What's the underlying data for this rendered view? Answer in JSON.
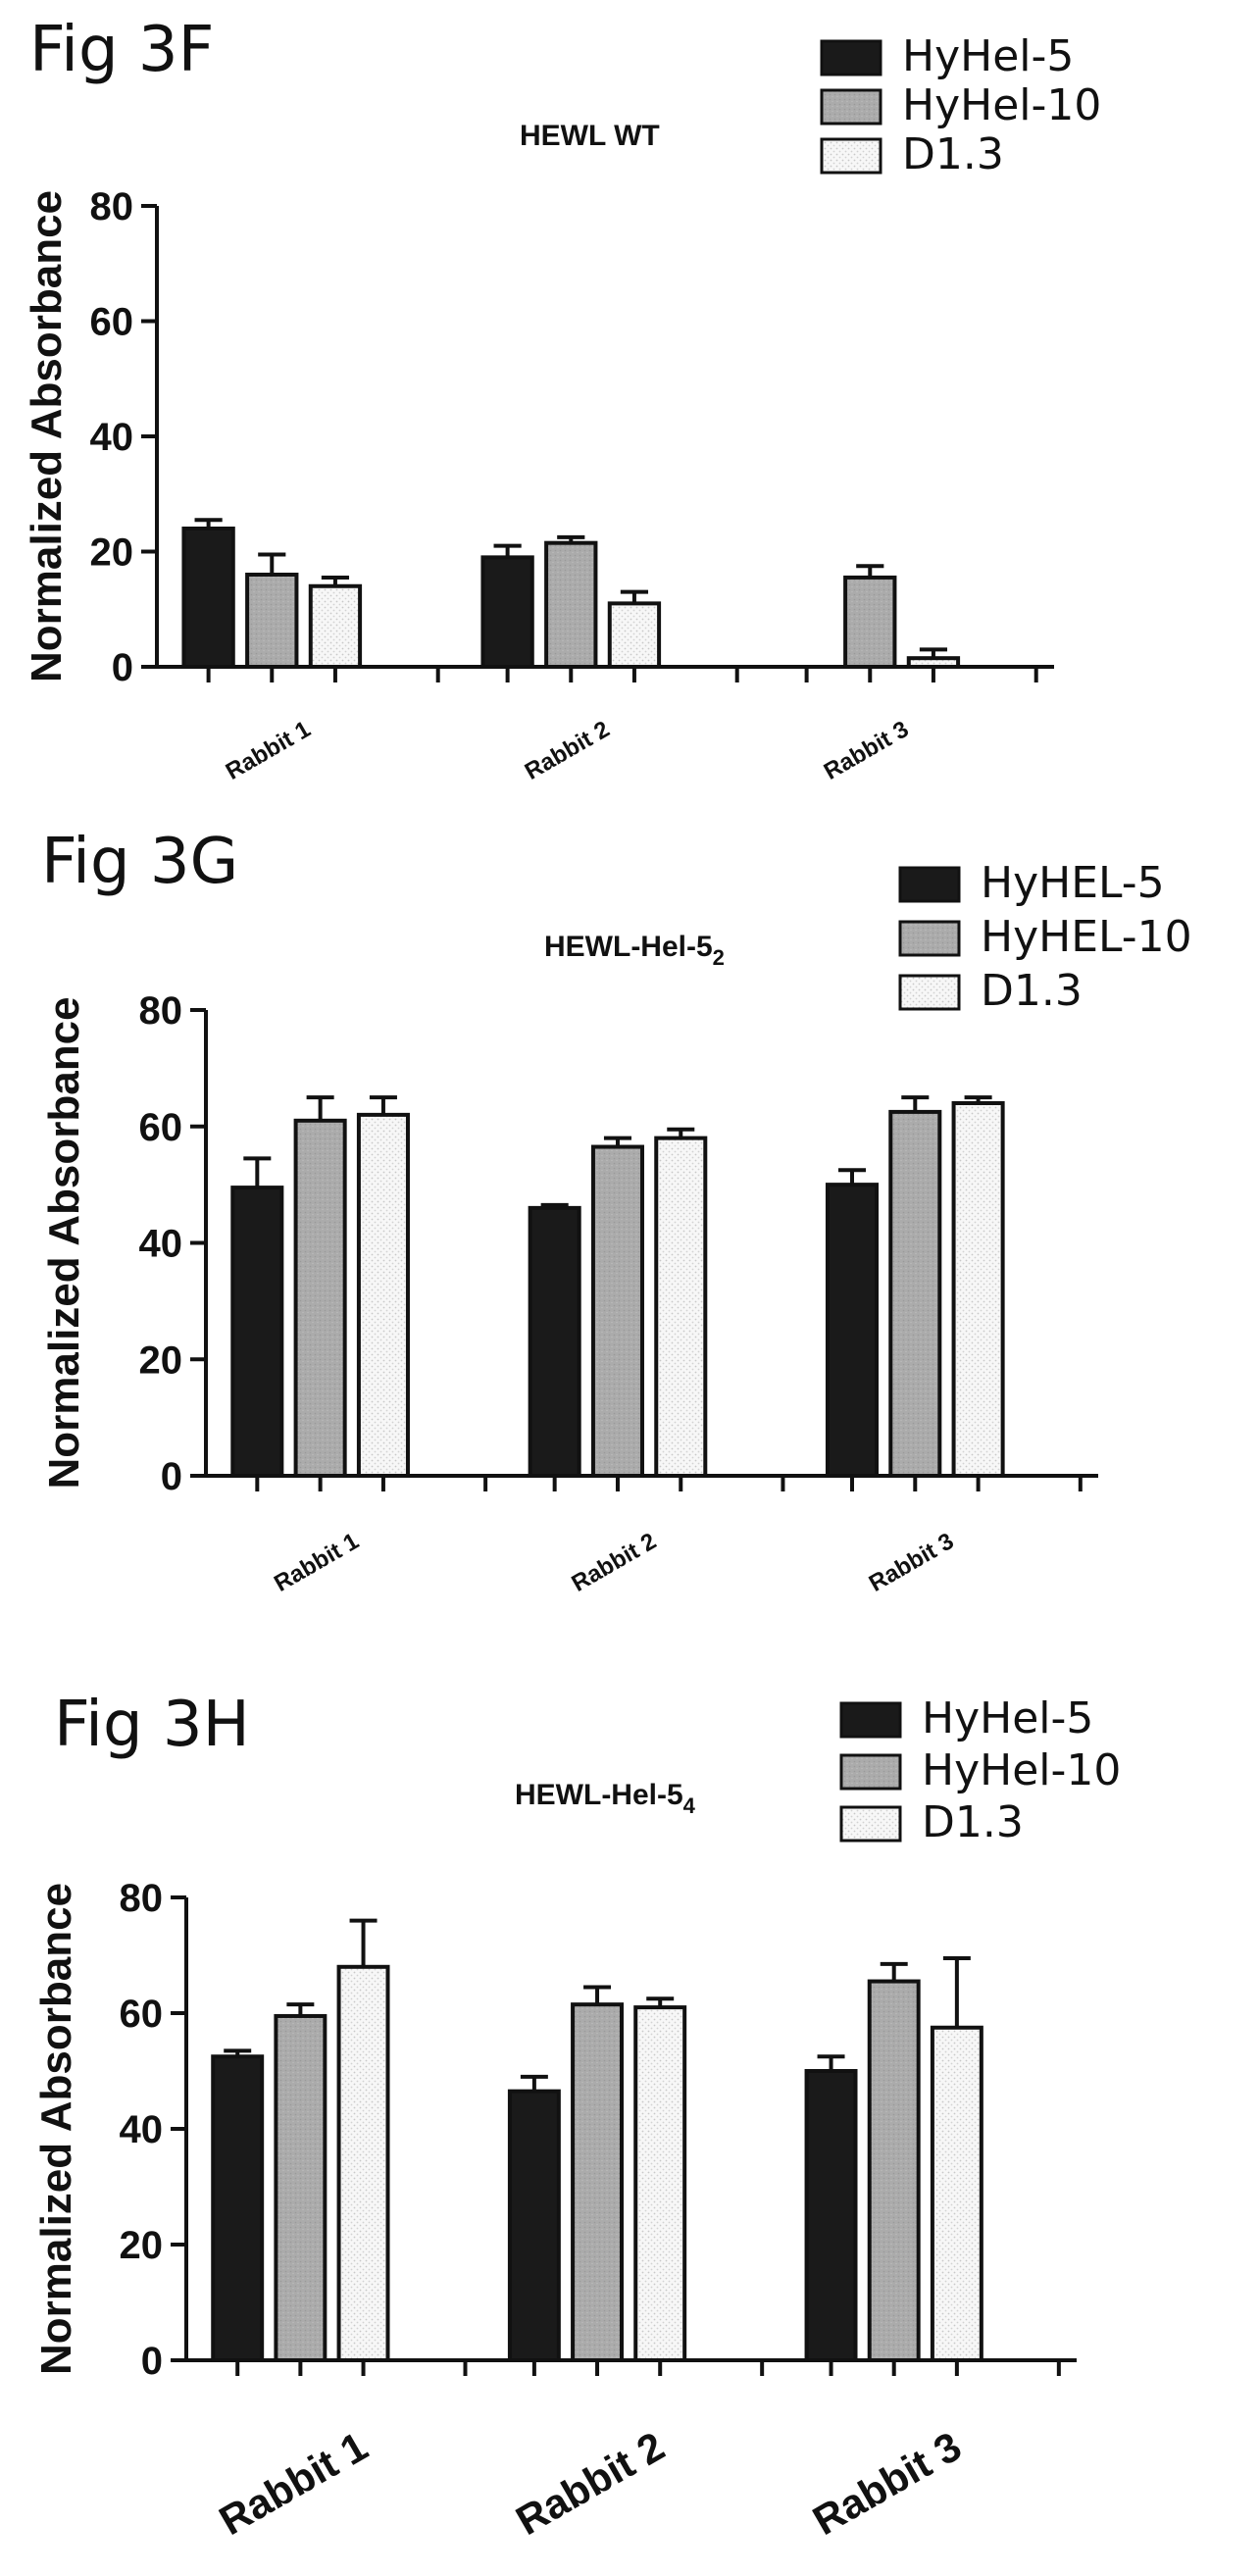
{
  "chart_data": [
    {
      "type": "bar",
      "fig_label": "Fig 3F",
      "title": "HEWL WT",
      "title_sub": "",
      "ylabel": "Normalized Absorbance",
      "ylim": [
        0,
        80
      ],
      "yticks": [
        "0",
        "20",
        "40",
        "60",
        "80"
      ],
      "categories": [
        "Rabbit 1",
        "Rabbit 2",
        "Rabbit 3"
      ],
      "series": [
        {
          "name": "HyHel-5",
          "values": [
            24,
            19,
            null
          ],
          "errors": [
            1.5,
            2,
            0
          ]
        },
        {
          "name": "HyHel-10",
          "values": [
            16,
            21.5,
            15.5
          ],
          "errors": [
            3.5,
            1,
            2
          ]
        },
        {
          "name": "D1.3",
          "values": [
            14,
            11,
            1.5
          ],
          "errors": [
            1.5,
            2,
            1.5
          ]
        }
      ],
      "legend_position": "top-right",
      "colors": [
        "#1a1a1a",
        "#a9a9a9",
        "#f4f4f4"
      ]
    },
    {
      "type": "bar",
      "fig_label": "Fig 3G",
      "title": "HEWL-Hel-5",
      "title_sub": "2",
      "ylabel": "Normalized Absorbance",
      "ylim": [
        0,
        80
      ],
      "yticks": [
        "0",
        "20",
        "40",
        "60",
        "80"
      ],
      "categories": [
        "Rabbit 1",
        "Rabbit 2",
        "Rabbit 3"
      ],
      "series": [
        {
          "name": "HyHEL-5",
          "values": [
            49.5,
            46,
            50
          ],
          "errors": [
            5,
            0.5,
            2.5
          ]
        },
        {
          "name": "HyHEL-10",
          "values": [
            61,
            56.5,
            62.5
          ],
          "errors": [
            4,
            1.5,
            2.5
          ]
        },
        {
          "name": "D1.3",
          "values": [
            62,
            58,
            64
          ],
          "errors": [
            3,
            1.5,
            1
          ]
        }
      ],
      "legend_position": "top-right",
      "colors": [
        "#1a1a1a",
        "#a9a9a9",
        "#f4f4f4"
      ]
    },
    {
      "type": "bar",
      "fig_label": "Fig 3H",
      "title": "HEWL-Hel-5",
      "title_sub": "4",
      "ylabel": "Normalized Absorbance",
      "ylim": [
        0,
        80
      ],
      "yticks": [
        "0",
        "20",
        "40",
        "60",
        "80"
      ],
      "categories": [
        "Rabbit 1",
        "Rabbit 2",
        "Rabbit 3"
      ],
      "series": [
        {
          "name": "HyHel-5",
          "values": [
            52.5,
            46.5,
            50
          ],
          "errors": [
            1,
            2.5,
            2.5
          ]
        },
        {
          "name": "HyHel-10",
          "values": [
            59.5,
            61.5,
            65.5
          ],
          "errors": [
            2,
            3,
            3
          ]
        },
        {
          "name": " D1.3",
          "values": [
            68,
            61,
            57.5
          ],
          "errors": [
            8,
            1.5,
            12
          ]
        }
      ],
      "legend_position": "top-right",
      "colors": [
        "#1a1a1a",
        "#a9a9a9",
        "#f4f4f4"
      ]
    }
  ]
}
